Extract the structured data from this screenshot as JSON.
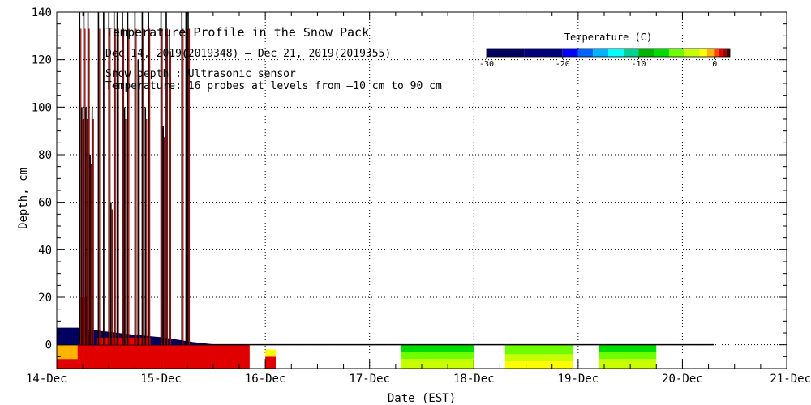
{
  "chart_data": {
    "type": "area",
    "title": "Temperature Profile in the Snow Pack",
    "subtitle": "Dec 14, 2019(2019348) – Dec 21, 2019(2019355)",
    "annotations": [
      "Snow depth : Ultrasonic sensor",
      "Temperature: 16 probes at levels from –10 cm to 90 cm"
    ],
    "xlabel": "Date (EST)",
    "ylabel": "Depth, cm",
    "x_ticks": [
      "14-Dec",
      "15-Dec",
      "16-Dec",
      "17-Dec",
      "18-Dec",
      "19-Dec",
      "20-Dec",
      "21-Dec"
    ],
    "xlim": [
      0,
      7
    ],
    "ylim": [
      -10,
      140
    ],
    "y_ticks": [
      0,
      20,
      40,
      60,
      80,
      100,
      120,
      140
    ],
    "grid": true,
    "legend": {
      "title": "Temperature (C)",
      "placement": "top-right",
      "ticks": [
        -30,
        -20,
        -10,
        0
      ],
      "range": [
        -30,
        2
      ],
      "bins": [
        {
          "from": -30,
          "to": -25,
          "color": "#000060"
        },
        {
          "from": -25,
          "to": -20,
          "color": "#00007c"
        },
        {
          "from": -20,
          "to": -18,
          "color": "#0000ff"
        },
        {
          "from": -18,
          "to": -16,
          "color": "#0064ff"
        },
        {
          "from": -16,
          "to": -14,
          "color": "#00b4ff"
        },
        {
          "from": -14,
          "to": -12,
          "color": "#00ffff"
        },
        {
          "from": -12,
          "to": -10,
          "color": "#00d296"
        },
        {
          "from": -10,
          "to": -8,
          "color": "#00b400"
        },
        {
          "from": -8,
          "to": -6,
          "color": "#00dc00"
        },
        {
          "from": -6,
          "to": -4,
          "color": "#6eff00"
        },
        {
          "from": -4,
          "to": -2,
          "color": "#c8ff00"
        },
        {
          "from": -2,
          "to": -1,
          "color": "#ffff00"
        },
        {
          "from": -1,
          "to": 0,
          "color": "#ffb400"
        },
        {
          "from": 0,
          "to": 0.5,
          "color": "#ff4600"
        },
        {
          "from": 0.5,
          "to": 1,
          "color": "#e00000"
        },
        {
          "from": 1,
          "to": 1.5,
          "color": "#a00000"
        },
        {
          "from": 1.5,
          "to": 2,
          "color": "#500000"
        }
      ]
    },
    "snow_depth_spikes": [
      {
        "x": 0.22,
        "y": 140
      },
      {
        "x": 0.24,
        "y": 100
      },
      {
        "x": 0.26,
        "y": 140
      },
      {
        "x": 0.28,
        "y": 100
      },
      {
        "x": 0.3,
        "y": 140
      },
      {
        "x": 0.32,
        "y": 80
      },
      {
        "x": 0.34,
        "y": 100
      },
      {
        "x": 0.4,
        "y": 140
      },
      {
        "x": 0.45,
        "y": 140
      },
      {
        "x": 0.5,
        "y": 140
      },
      {
        "x": 0.52,
        "y": 60
      },
      {
        "x": 0.55,
        "y": 140
      },
      {
        "x": 0.58,
        "y": 140
      },
      {
        "x": 0.63,
        "y": 140
      },
      {
        "x": 0.65,
        "y": 100
      },
      {
        "x": 0.68,
        "y": 140
      },
      {
        "x": 0.75,
        "y": 140
      },
      {
        "x": 0.78,
        "y": 120
      },
      {
        "x": 0.82,
        "y": 140
      },
      {
        "x": 0.85,
        "y": 100
      },
      {
        "x": 0.88,
        "y": 140
      },
      {
        "x": 1.0,
        "y": 140
      },
      {
        "x": 1.02,
        "y": 92
      },
      {
        "x": 1.05,
        "y": 140
      },
      {
        "x": 1.08,
        "y": 130
      },
      {
        "x": 1.2,
        "y": 140
      },
      {
        "x": 1.24,
        "y": 140
      },
      {
        "x": 1.26,
        "y": 140
      }
    ],
    "snow_depth_baseline": [
      {
        "x": 0.0,
        "y": 7
      },
      {
        "x": 0.2,
        "y": 7
      },
      {
        "x": 0.35,
        "y": 6
      },
      {
        "x": 0.55,
        "y": 5
      },
      {
        "x": 0.75,
        "y": 4
      },
      {
        "x": 1.0,
        "y": 3
      },
      {
        "x": 1.15,
        "y": 2
      },
      {
        "x": 1.3,
        "y": 1
      },
      {
        "x": 1.5,
        "y": 0
      }
    ],
    "temperature_blocks": [
      {
        "x0": 0.0,
        "x1": 1.85,
        "y0": -10,
        "y1": 0,
        "temp": 0.7
      },
      {
        "x0": 0.0,
        "x1": 0.2,
        "y0": -6,
        "y1": 0,
        "temp": -0.5
      },
      {
        "x0": 2.0,
        "x1": 2.1,
        "y0": -10,
        "y1": -5,
        "temp": 0.7
      },
      {
        "x0": 2.0,
        "x1": 2.1,
        "y0": -5,
        "y1": -2,
        "temp": -1.5
      },
      {
        "x0": 3.3,
        "x1": 4.0,
        "y0": -3,
        "y1": 0,
        "temp": -7
      },
      {
        "x0": 3.3,
        "x1": 4.0,
        "y0": -6,
        "y1": -3,
        "temp": -5
      },
      {
        "x0": 3.3,
        "x1": 4.0,
        "y0": -10,
        "y1": -6,
        "temp": -3
      },
      {
        "x0": 4.3,
        "x1": 4.95,
        "y0": -4,
        "y1": 0,
        "temp": -5
      },
      {
        "x0": 4.3,
        "x1": 4.95,
        "y0": -7,
        "y1": -4,
        "temp": -3
      },
      {
        "x0": 4.3,
        "x1": 4.95,
        "y0": -10,
        "y1": -7,
        "temp": -1.5
      },
      {
        "x0": 5.2,
        "x1": 5.75,
        "y0": -3,
        "y1": 0,
        "temp": -7
      },
      {
        "x0": 5.2,
        "x1": 5.75,
        "y0": -6,
        "y1": -3,
        "temp": -5
      },
      {
        "x0": 5.2,
        "x1": 5.75,
        "y0": -10,
        "y1": -6,
        "temp": -3
      }
    ]
  }
}
